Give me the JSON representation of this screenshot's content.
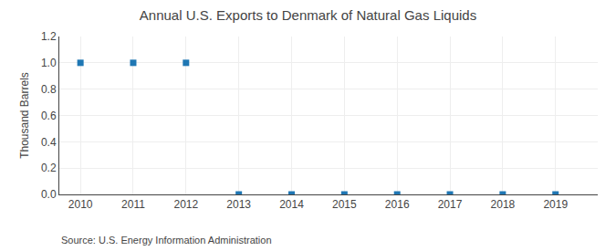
{
  "chart_data": {
    "type": "scatter",
    "title": "Annual U.S. Exports to Denmark of Natural Gas Liquids",
    "ylabel": "Thousand Barrels",
    "annotations": [
      "Source: U.S. Energy Information Administration"
    ],
    "x": [
      2010,
      2011,
      2012,
      2013,
      2014,
      2015,
      2016,
      2017,
      2018,
      2019
    ],
    "values": [
      1.0,
      1.0,
      1.0,
      0.0,
      0.0,
      0.0,
      0.0,
      0.0,
      0.0,
      0.0
    ],
    "marker": "square",
    "xlim": [
      2009.6,
      2019.8
    ],
    "xticks": [
      2010,
      2011,
      2012,
      2013,
      2014,
      2015,
      2016,
      2017,
      2018,
      2019
    ],
    "ylim": [
      0.0,
      1.2
    ],
    "yticks": [
      {
        "value": 0.0,
        "label": "0.0"
      },
      0.2,
      0.4,
      0.6,
      0.8,
      {
        "value": 1.0,
        "label": "1.0"
      },
      1.2
    ],
    "grid": true
  }
}
